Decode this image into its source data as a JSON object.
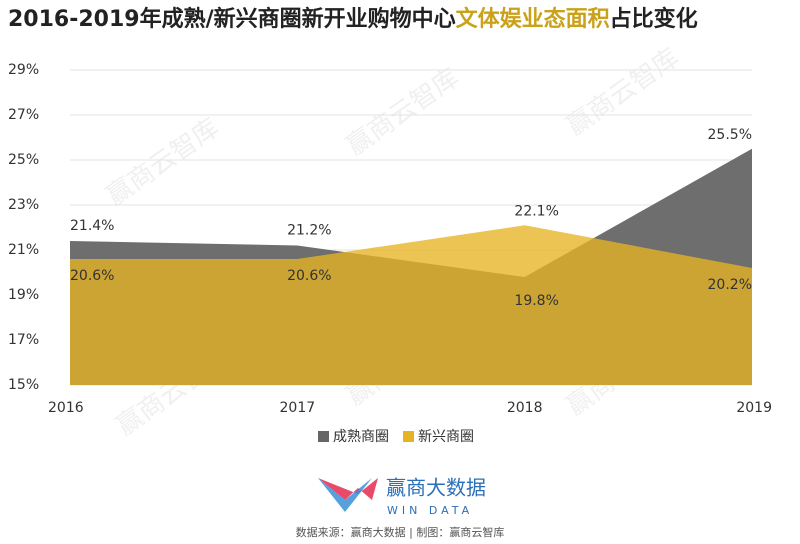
{
  "chart_data": {
    "type": "area",
    "title": [
      "2016-2019年成熟/新兴商圈新开业购物中心",
      "文体娱业态面积",
      "占比变化"
    ],
    "title_colors": [
      "#222222",
      "#c9a21a",
      "#222222"
    ],
    "categories": [
      "2016",
      "2017",
      "2018",
      "2019"
    ],
    "series": [
      {
        "name": "成熟商圈",
        "color": "#666666",
        "values": [
          21.4,
          21.2,
          19.8,
          25.5
        ],
        "value_labels": [
          "21.4%",
          "21.2%",
          "19.8%",
          "25.5%"
        ]
      },
      {
        "name": "新兴商圈",
        "color": "#e6b422",
        "values": [
          20.6,
          20.6,
          22.1,
          20.2
        ],
        "value_labels": [
          "20.6%",
          "20.6%",
          "22.1%",
          "20.2%"
        ]
      }
    ],
    "ylim": [
      15,
      29
    ],
    "yticks": [
      {
        "value": 15,
        "label": "15%"
      },
      {
        "value": 17,
        "label": "17%"
      },
      {
        "value": 19,
        "label": "19%"
      },
      {
        "value": 21,
        "label": "21%"
      },
      {
        "value": 23,
        "label": "23%"
      },
      {
        "value": 25,
        "label": "25%"
      },
      {
        "value": 27,
        "label": "27%"
      },
      {
        "value": 29,
        "label": "29%"
      }
    ],
    "grid": true,
    "legend": "bottom",
    "watermark": "赢商云智库",
    "logo": {
      "name": "赢商大数据",
      "sub": "WIN DATA"
    },
    "source": "数据来源：赢商大数据 | 制图：赢商云智库"
  }
}
